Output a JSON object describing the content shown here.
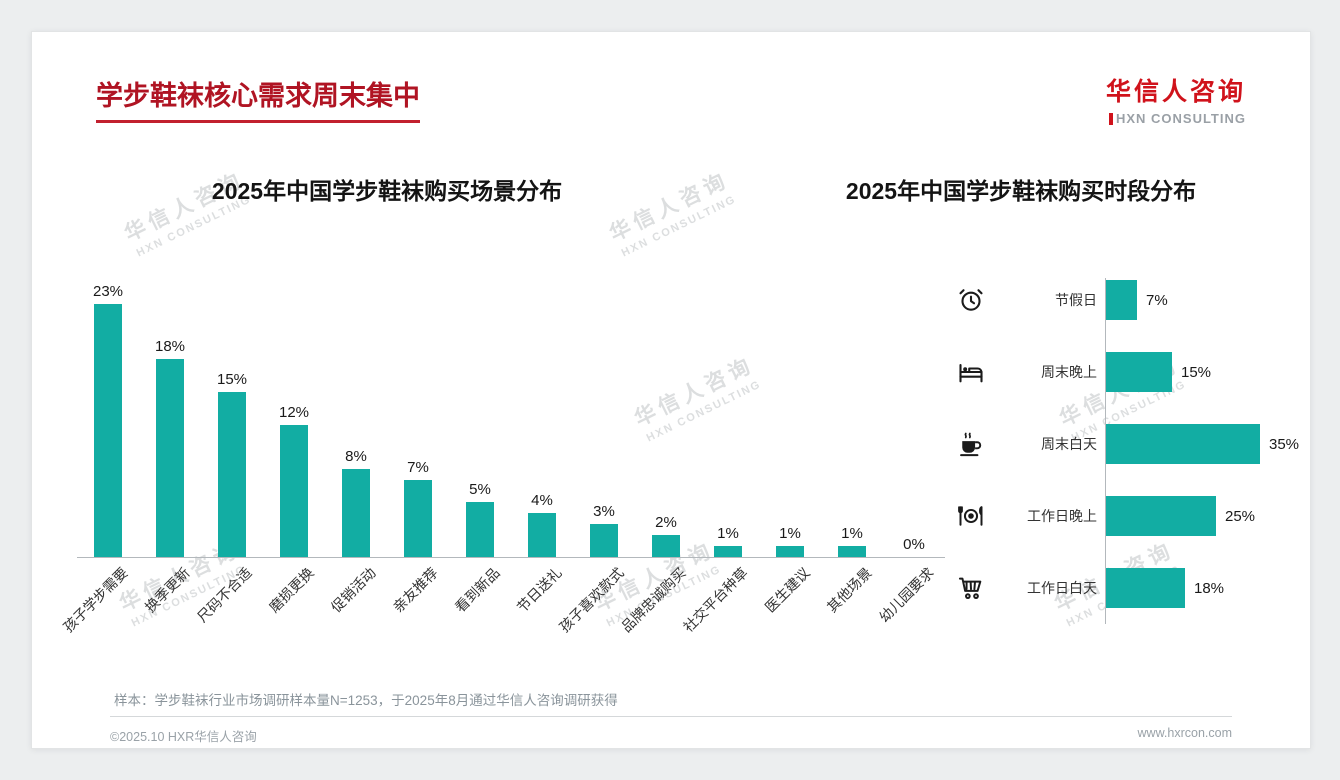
{
  "page": {
    "title": "学步鞋袜核心需求周末集中",
    "logo": {
      "name": "华信人咨询",
      "subtitle": "HXN CONSULTING"
    },
    "watermark": {
      "line1": "华信人咨询",
      "line2": "HXN CONSULTING"
    },
    "note": "样本：学步鞋袜行业市场调研样本量N=1253，于2025年8月通过华信人咨询调研获得",
    "footer": {
      "left": "©2025.10 HXR华信人咨询",
      "right": "www.hxrcon.com"
    }
  },
  "chart_data": [
    {
      "type": "bar",
      "orientation": "vertical",
      "title": "2025年中国学步鞋袜购买场景分布",
      "categories": [
        "孩子学步需要",
        "换季更新",
        "尺码不合适",
        "磨损更换",
        "促销活动",
        "亲友推荐",
        "看到新品",
        "节日送礼",
        "孩子喜欢款式",
        "品牌忠诚购买",
        "社交平台种草",
        "医生建议",
        "其他场景",
        "幼儿园要求"
      ],
      "values": [
        23,
        18,
        15,
        12,
        8,
        7,
        5,
        4,
        3,
        2,
        1,
        1,
        1,
        0
      ],
      "unit": "%",
      "bar_color": "#12ada3",
      "ylim": [
        0,
        25
      ],
      "grid": false,
      "value_labels": true
    },
    {
      "type": "bar",
      "orientation": "horizontal",
      "title": "2025年中国学步鞋袜购买时段分布",
      "categories": [
        "节假日",
        "周末晚上",
        "周末白天",
        "工作日晚上",
        "工作日白天"
      ],
      "values": [
        7,
        15,
        35,
        25,
        18
      ],
      "icons": [
        "alarm-clock-icon",
        "bed-icon",
        "coffee-icon",
        "dining-icon",
        "shopping-cart-icon"
      ],
      "unit": "%",
      "bar_color": "#12ada3",
      "xlim": [
        0,
        40
      ],
      "grid": false,
      "value_labels": true
    }
  ]
}
